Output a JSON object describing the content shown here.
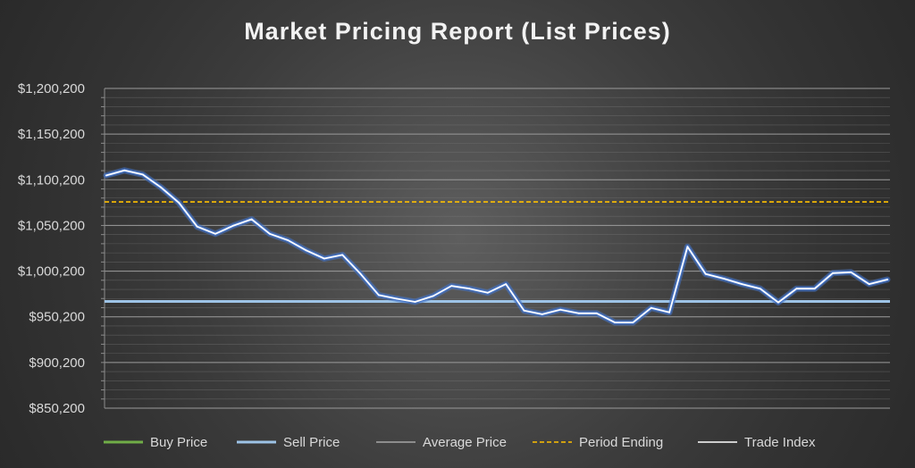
{
  "chart_data": {
    "type": "line",
    "title": "Market Pricing Report (List Prices)",
    "xlabel": "",
    "ylabel": "",
    "ylim": [
      850200,
      1200200
    ],
    "yticks": [
      850200,
      900200,
      950200,
      1000200,
      1050200,
      1100200,
      1150200,
      1200200
    ],
    "ytick_labels": [
      "$850,200",
      "$900,200",
      "$950,200",
      "$1,000,200",
      "$1,050,200",
      "$1,100,200",
      "$1,150,200",
      "$1,200,200"
    ],
    "grid": true,
    "legend_position": "bottom",
    "series": [
      {
        "name": "Buy Price",
        "color": "#70ad47",
        "style": "solid",
        "values": []
      },
      {
        "name": "Sell Price",
        "color": "#9dc3e6",
        "style": "solid",
        "values": [
          967000,
          967000
        ]
      },
      {
        "name": "Average Price",
        "color": "#a6a6a6",
        "style": "solid",
        "values": []
      },
      {
        "name": "Period Ending",
        "color": "#ffc000",
        "style": "dashed",
        "values": [
          1076000,
          1076000
        ]
      },
      {
        "name": "Trade Index",
        "color": "#ffffff",
        "glow": "#4472c4",
        "style": "solid",
        "values": [
          1105000,
          1110500,
          1106000,
          1092000,
          1075000,
          1049000,
          1041000,
          1050000,
          1057000,
          1041000,
          1034000,
          1023000,
          1014000,
          1018000,
          997000,
          974000,
          970000,
          966500,
          973000,
          984000,
          981000,
          976500,
          986000,
          957000,
          953000,
          958000,
          954000,
          954000,
          944000,
          944000,
          960000,
          955000,
          1027000,
          997000,
          992000,
          986000,
          981000,
          966000,
          981000,
          981000,
          998000,
          999000,
          986000,
          991000
        ]
      }
    ]
  }
}
